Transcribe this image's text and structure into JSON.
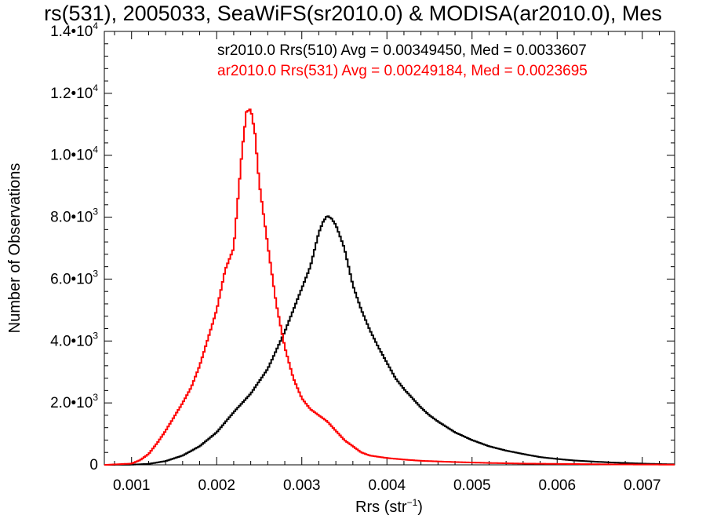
{
  "chart_data": {
    "type": "line",
    "step": true,
    "title": "rs(531), 2005033, SeaWiFS(sr2010.0) & MODISA(ar2010.0), Mes",
    "xlabel_main": "Rrs (str",
    "xlabel_sup": "−1",
    "xlabel_end": ")",
    "ylabel": "Number of Observations",
    "xlim": [
      0.00068,
      0.00738
    ],
    "ylim": [
      0,
      14000
    ],
    "grid": false,
    "legend_position": "top-right",
    "xticks": [
      {
        "value": 0.001,
        "label": "0.001"
      },
      {
        "value": 0.002,
        "label": "0.002"
      },
      {
        "value": 0.003,
        "label": "0.003"
      },
      {
        "value": 0.004,
        "label": "0.004"
      },
      {
        "value": 0.005,
        "label": "0.005"
      },
      {
        "value": 0.006,
        "label": "0.006"
      },
      {
        "value": 0.007,
        "label": "0.007"
      }
    ],
    "yticks": [
      {
        "value": 0,
        "label": "0",
        "exp": ""
      },
      {
        "value": 2000,
        "label": "2.0•10",
        "exp": "3"
      },
      {
        "value": 4000,
        "label": "4.0•10",
        "exp": "3"
      },
      {
        "value": 6000,
        "label": "6.0•10",
        "exp": "3"
      },
      {
        "value": 8000,
        "label": "8.0•10",
        "exp": "3"
      },
      {
        "value": 10000,
        "label": "1.0•10",
        "exp": "4"
      },
      {
        "value": 12000,
        "label": "1.2•10",
        "exp": "4"
      },
      {
        "value": 14000,
        "label": "1.4•10",
        "exp": "4"
      }
    ],
    "series": [
      {
        "name": "sr2010.0 Rrs(510) Avg = 0.00349450, Med = 0.0033607",
        "color": "#000000",
        "points": [
          [
            0.0007,
            0
          ],
          [
            0.001,
            5
          ],
          [
            0.0012,
            30
          ],
          [
            0.0014,
            120
          ],
          [
            0.0016,
            300
          ],
          [
            0.0018,
            600
          ],
          [
            0.002,
            1050
          ],
          [
            0.0022,
            1700
          ],
          [
            0.0024,
            2300
          ],
          [
            0.0026,
            3100
          ],
          [
            0.0028,
            4300
          ],
          [
            0.003,
            5700
          ],
          [
            0.0031,
            6400
          ],
          [
            0.0032,
            7500
          ],
          [
            0.00325,
            7850
          ],
          [
            0.0033,
            8050
          ],
          [
            0.00335,
            7950
          ],
          [
            0.0034,
            7750
          ],
          [
            0.0035,
            7000
          ],
          [
            0.0036,
            5800
          ],
          [
            0.0037,
            5000
          ],
          [
            0.0038,
            4350
          ],
          [
            0.0039,
            3800
          ],
          [
            0.004,
            3300
          ],
          [
            0.0041,
            2800
          ],
          [
            0.0042,
            2450
          ],
          [
            0.0043,
            2150
          ],
          [
            0.0044,
            1850
          ],
          [
            0.0045,
            1600
          ],
          [
            0.0046,
            1400
          ],
          [
            0.0048,
            1050
          ],
          [
            0.005,
            800
          ],
          [
            0.0052,
            600
          ],
          [
            0.0054,
            460
          ],
          [
            0.0056,
            350
          ],
          [
            0.0058,
            250
          ],
          [
            0.006,
            190
          ],
          [
            0.0062,
            140
          ],
          [
            0.0064,
            110
          ],
          [
            0.0066,
            80
          ],
          [
            0.0068,
            60
          ],
          [
            0.007,
            40
          ],
          [
            0.0072,
            25
          ],
          [
            0.0074,
            15
          ]
        ]
      },
      {
        "name": "ar2010.0 Rrs(531) Avg = 0.00249184, Med = 0.0023695",
        "color": "#ff0000",
        "points": [
          [
            0.0007,
            0
          ],
          [
            0.001,
            40
          ],
          [
            0.0011,
            150
          ],
          [
            0.0012,
            350
          ],
          [
            0.0013,
            700
          ],
          [
            0.0014,
            1100
          ],
          [
            0.0015,
            1550
          ],
          [
            0.0016,
            2000
          ],
          [
            0.0017,
            2500
          ],
          [
            0.0018,
            3200
          ],
          [
            0.0019,
            4100
          ],
          [
            0.002,
            5000
          ],
          [
            0.0021,
            6300
          ],
          [
            0.0022,
            7000
          ],
          [
            0.00225,
            8600
          ],
          [
            0.0023,
            10200
          ],
          [
            0.00235,
            11400
          ],
          [
            0.0024,
            11500
          ],
          [
            0.00245,
            10700
          ],
          [
            0.0025,
            9100
          ],
          [
            0.0026,
            7100
          ],
          [
            0.0027,
            5200
          ],
          [
            0.0028,
            3800
          ],
          [
            0.0029,
            2800
          ],
          [
            0.003,
            2150
          ],
          [
            0.0031,
            1800
          ],
          [
            0.0032,
            1600
          ],
          [
            0.0033,
            1400
          ],
          [
            0.0034,
            1100
          ],
          [
            0.0035,
            800
          ],
          [
            0.0036,
            600
          ],
          [
            0.0037,
            400
          ],
          [
            0.0038,
            300
          ],
          [
            0.004,
            220
          ],
          [
            0.0042,
            170
          ],
          [
            0.0044,
            130
          ],
          [
            0.0046,
            110
          ],
          [
            0.0048,
            90
          ],
          [
            0.005,
            75
          ],
          [
            0.0052,
            60
          ],
          [
            0.0054,
            50
          ],
          [
            0.0056,
            40
          ],
          [
            0.0058,
            35
          ],
          [
            0.006,
            30
          ],
          [
            0.0062,
            25
          ],
          [
            0.0064,
            20
          ],
          [
            0.0066,
            15
          ],
          [
            0.0068,
            12
          ],
          [
            0.007,
            10
          ],
          [
            0.0072,
            8
          ],
          [
            0.0074,
            5
          ]
        ]
      }
    ]
  }
}
